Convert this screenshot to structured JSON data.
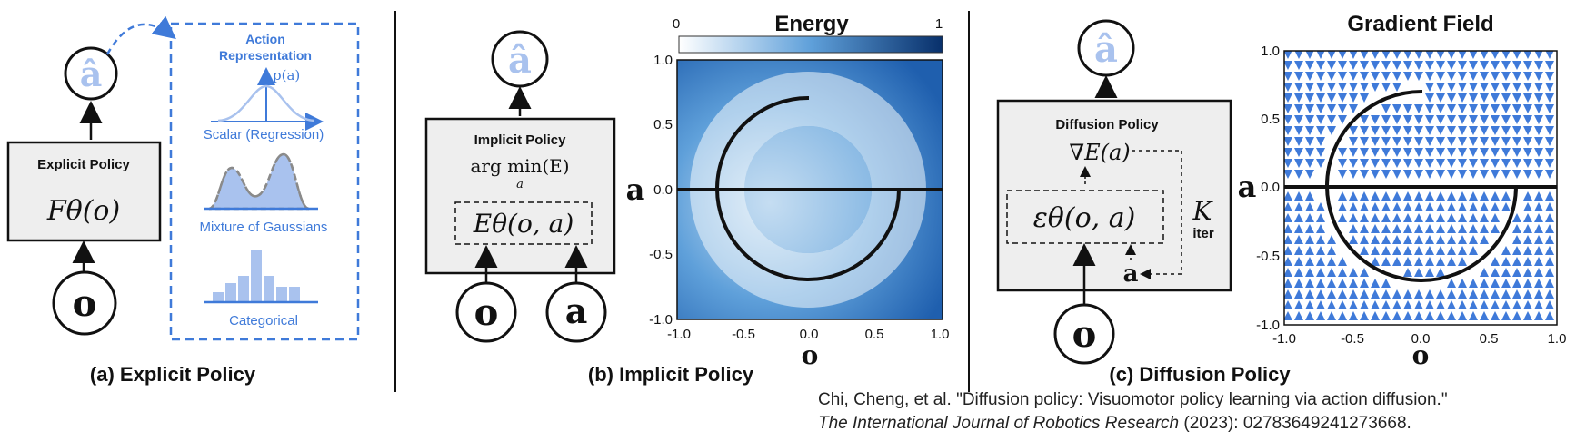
{
  "panel_a": {
    "caption": "(a) Explicit Policy",
    "box_title": "Explicit Policy",
    "formula": "Fθ(o)",
    "output_symbol": "â",
    "input_symbol": "o",
    "action_rep": {
      "title_line1": "Action",
      "title_line2": "Representation",
      "axis_label": "p(a)",
      "items": [
        "Scalar (Regression)",
        "Mixture of Gaussians",
        "Categorical"
      ]
    }
  },
  "panel_b": {
    "caption": "(b) Implicit Policy",
    "box_title": "Implicit Policy",
    "argmin_text": "arg min(E)",
    "argmin_sub": "a",
    "energy_formula": "Eθ(o, a)",
    "output_symbol": "â",
    "inputs": [
      "o",
      "a"
    ]
  },
  "panel_c": {
    "caption": "(c) Diffusion Policy",
    "box_title": "Diffusion Policy",
    "grad_formula": "∇E(a)",
    "eps_formula": "εθ(o, a)",
    "iter_label": "K",
    "iter_sub": "iter",
    "noisy_action": "a",
    "output_symbol": "â",
    "input_symbol": "o"
  },
  "chart_data": [
    {
      "type": "heatmap",
      "title": "Energy",
      "colorbar_min_label": "0",
      "colorbar_max_label": "1",
      "xlabel": "o",
      "ylabel": "a",
      "xlim": [
        -1.0,
        1.0
      ],
      "ylim": [
        -1.0,
        1.0
      ],
      "xticks": [
        "-1.0",
        "-0.5",
        "0.0",
        "0.5",
        "1.0"
      ],
      "yticks": [
        "1.0",
        "0.5",
        "0.0",
        "-0.5",
        "-1.0"
      ],
      "curve": "upper branch a=0 for o<-0.7 and o>0.7 line; semicircle of radius 0.7 centered at origin"
    },
    {
      "type": "vector_field",
      "title": "Gradient Field",
      "xlabel": "o",
      "ylabel": "a",
      "xlim": [
        -1.0,
        1.0
      ],
      "ylim": [
        -1.0,
        1.0
      ],
      "xticks": [
        "-1.0",
        "-0.5",
        "0.0",
        "0.5",
        "1.0"
      ],
      "yticks": [
        "1.0",
        "0.5",
        "0.0",
        "-0.5",
        "-1.0"
      ]
    }
  ],
  "citation": {
    "line1": "Chi, Cheng, et al. \"Diffusion policy: Visuomotor policy learning via action diffusion.\"",
    "journal": "The International Journal of Robotics Research",
    "line2_rest": " (2023): 02783649241273668."
  },
  "colors": {
    "accent_blue": "#3f7ad9",
    "light_blue": "#a9c2ee",
    "box_fill": "#eeeeee",
    "energy_dark": "#0b3f8a",
    "energy_light": "#ffffff"
  }
}
